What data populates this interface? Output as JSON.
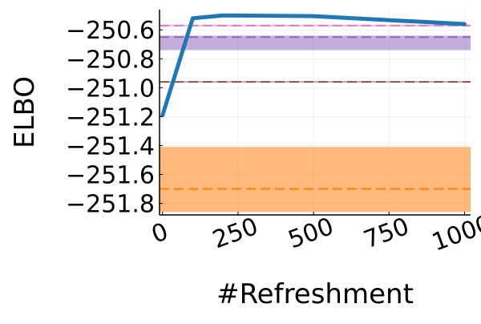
{
  "chart_data": {
    "type": "line",
    "title": "",
    "xlabel": "#Refreshment",
    "ylabel": "ELBO",
    "xlim": [
      -10,
      1020
    ],
    "ylim": [
      -251.88,
      -250.46
    ],
    "x_ticks": [
      0,
      250,
      500,
      750,
      1000
    ],
    "x_tick_labels": [
      "0",
      "250",
      "500",
      "750",
      "1000"
    ],
    "y_ticks": [
      -250.6,
      -250.8,
      -251.0,
      -251.2,
      -251.4,
      -251.6,
      -251.8
    ],
    "y_tick_labels": [
      "−250.6",
      "−250.8",
      "−251.0",
      "−251.2",
      "−251.4",
      "−251.6",
      "−251.8"
    ],
    "grid": true,
    "legend": "none",
    "series": [
      {
        "color": "#1f77b4",
        "x": [
          0,
          100,
          200,
          500,
          1000
        ],
        "y": [
          -251.19,
          -250.52,
          -250.5,
          -250.505,
          -250.56
        ]
      }
    ],
    "reference_bands": [
      {
        "color": "#ff7f0e",
        "mean": -251.7,
        "lower": -251.86,
        "upper": -251.41
      },
      {
        "color": "#9467bd",
        "mean": -250.65,
        "lower": -250.74,
        "upper": -250.64
      },
      {
        "color": "#8c564b",
        "mean": -250.96,
        "lower": -250.965,
        "upper": -250.955
      },
      {
        "color": "#e377c2",
        "mean": -250.57,
        "lower": -250.575,
        "upper": -250.565
      }
    ]
  }
}
